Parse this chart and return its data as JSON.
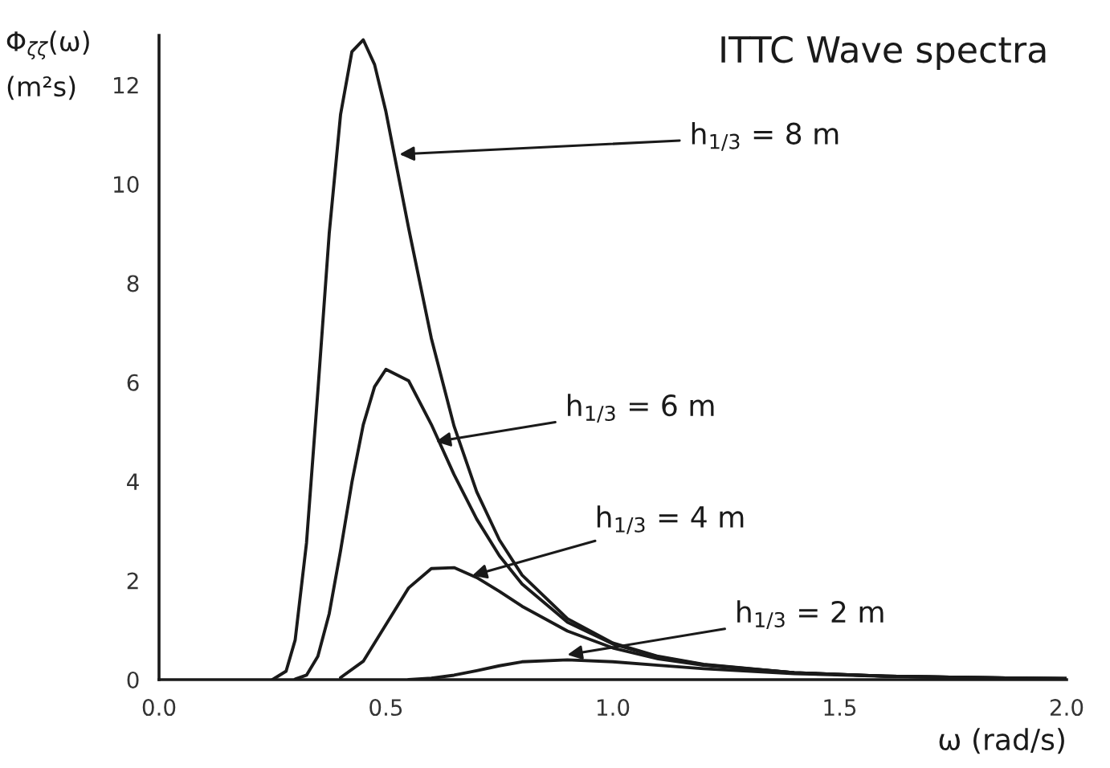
{
  "chart_data": {
    "type": "line",
    "title": "ITTC Wave spectra",
    "xlabel": "ω (rad/s)",
    "ylabel": "Φ$_{ζζ}$(ω)\n(m²s)",
    "xlim": [
      0,
      2.0
    ],
    "ylim": [
      0,
      13
    ],
    "xticks": [
      {
        "value": 0,
        "label": "0.0"
      },
      0.5,
      {
        "value": 1,
        "label": "1.0"
      },
      1.5,
      {
        "value": 2,
        "label": "2.0"
      }
    ],
    "yticks": [
      0,
      2,
      4,
      6,
      8,
      10,
      12
    ],
    "grid": false,
    "legend": false,
    "marker": "none",
    "line_style": "solid",
    "series": [
      {
        "color": "#1a1a1a",
        "x": [
          0.25,
          0.28,
          0.3,
          0.325,
          0.35,
          0.375,
          0.4,
          0.425,
          0.45,
          0.475,
          0.5,
          0.55,
          0.6,
          0.65,
          0.7,
          0.75,
          0.8,
          0.9,
          1.0,
          1.1,
          1.2,
          1.4,
          1.6,
          1.8,
          2.0
        ],
        "values": [
          0.0,
          0.17,
          0.8,
          2.76,
          5.82,
          9.0,
          11.4,
          12.67,
          12.91,
          12.41,
          11.46,
          9.11,
          6.89,
          5.12,
          3.79,
          2.82,
          2.11,
          1.23,
          0.74,
          0.47,
          0.31,
          0.14,
          0.07,
          0.04,
          0.02
        ]
      },
      {
        "color": "#1a1a1a",
        "x": [
          0.3,
          0.325,
          0.35,
          0.375,
          0.4,
          0.425,
          0.45,
          0.475,
          0.5,
          0.55,
          0.6,
          0.65,
          0.7,
          0.75,
          0.8,
          0.9,
          1.0,
          1.1,
          1.2,
          1.4,
          1.6,
          1.8,
          2.0
        ],
        "values": [
          0.01,
          0.09,
          0.47,
          1.33,
          2.6,
          3.98,
          5.14,
          5.91,
          6.26,
          6.03,
          5.15,
          4.14,
          3.24,
          2.5,
          1.93,
          1.16,
          0.72,
          0.46,
          0.3,
          0.14,
          0.07,
          0.04,
          0.02
        ]
      },
      {
        "color": "#1a1a1a",
        "x": [
          0.4,
          0.45,
          0.5,
          0.55,
          0.6,
          0.65,
          0.7,
          0.75,
          0.8,
          0.9,
          1.0,
          1.1,
          1.2,
          1.4,
          1.6,
          1.8,
          2.0
        ],
        "values": [
          0.04,
          0.37,
          1.11,
          1.85,
          2.24,
          2.26,
          2.06,
          1.78,
          1.48,
          0.98,
          0.64,
          0.42,
          0.29,
          0.14,
          0.07,
          0.04,
          0.02
        ]
      },
      {
        "color": "#1a1a1a",
        "x": [
          0.55,
          0.6,
          0.65,
          0.7,
          0.75,
          0.8,
          0.9,
          1.0,
          1.1,
          1.2,
          1.4,
          1.6,
          1.8,
          2.0
        ],
        "values": [
          0.0,
          0.03,
          0.09,
          0.18,
          0.28,
          0.36,
          0.4,
          0.36,
          0.29,
          0.22,
          0.12,
          0.07,
          0.04,
          0.02
        ]
      }
    ],
    "annotations": [
      {
        "text": "h$_{1/3}$ = 8 m",
        "x": 0.53,
        "y": 10.6
      },
      {
        "text": "h$_{1/3}$ = 6 m",
        "x": 0.61,
        "y": 4.8
      },
      {
        "text": "h$_{1/3}$ = 4 m",
        "x": 0.69,
        "y": 2.1
      },
      {
        "text": "h$_{1/3}$ = 2 m",
        "x": 0.9,
        "y": 0.5
      }
    ]
  }
}
